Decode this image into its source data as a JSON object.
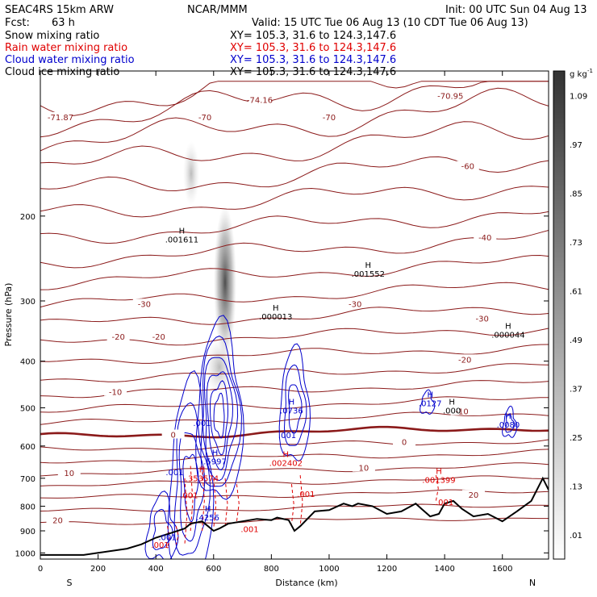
{
  "header": {
    "model": "SEAC4RS 15km ARW",
    "org": "NCAR/MMM",
    "init": "Init: 00 UTC Sun 04 Aug 13",
    "fcst_label": "Fcst:",
    "fcst_value": "63 h",
    "valid": "Valid: 15 UTC Tue 06 Aug 13 (10 CDT Tue 06 Aug 13)"
  },
  "legend": [
    {
      "label": "Snow mixing ratio",
      "xy": "XY= 105.3, 31.6 to 124.3,147.6",
      "color": "#000000"
    },
    {
      "label": "Rain water mixing ratio",
      "xy": "XY= 105.3, 31.6 to 124.3,147.6",
      "color": "#e00000"
    },
    {
      "label": "Cloud water mixing ratio",
      "xy": "XY= 105.3, 31.6 to 124.3,147.6",
      "color": "#0000cc"
    },
    {
      "label": "Cloud ice mixing ratio",
      "xy": "XY= 105.3, 31.6 to 124.3,147.6",
      "color": "#000000"
    }
  ],
  "chart_data": {
    "type": "contour-cross-section",
    "xlabel": "Distance (km)",
    "ylabel": "Pressure (hPa)",
    "xlim": [
      0,
      1760
    ],
    "ylim": [
      1030,
      100
    ],
    "y_log": true,
    "x_ticks": [
      0,
      200,
      400,
      600,
      800,
      1000,
      1200,
      1400,
      1600
    ],
    "y_ticks": [
      200,
      300,
      400,
      500,
      600,
      700,
      800,
      900,
      1000
    ],
    "x_end_labels": {
      "left": "S",
      "right": "N"
    },
    "colorbar": {
      "unit": "g kg",
      "unit_exp": "-1",
      "levels": [
        ".01",
        ".13",
        ".25",
        ".37",
        ".49",
        ".61",
        ".73",
        ".85",
        ".97",
        "1.09"
      ]
    },
    "terrain": [
      [
        0,
        1010
      ],
      [
        150,
        1010
      ],
      [
        200,
        1000
      ],
      [
        300,
        980
      ],
      [
        350,
        960
      ],
      [
        400,
        930
      ],
      [
        450,
        910
      ],
      [
        500,
        890
      ],
      [
        520,
        870
      ],
      [
        560,
        860
      ],
      [
        600,
        900
      ],
      [
        620,
        890
      ],
      [
        650,
        870
      ],
      [
        700,
        860
      ],
      [
        750,
        850
      ],
      [
        800,
        855
      ],
      [
        820,
        845
      ],
      [
        860,
        855
      ],
      [
        880,
        900
      ],
      [
        900,
        880
      ],
      [
        950,
        820
      ],
      [
        1000,
        815
      ],
      [
        1050,
        790
      ],
      [
        1080,
        800
      ],
      [
        1100,
        790
      ],
      [
        1150,
        800
      ],
      [
        1200,
        830
      ],
      [
        1250,
        820
      ],
      [
        1300,
        790
      ],
      [
        1320,
        810
      ],
      [
        1350,
        840
      ],
      [
        1380,
        830
      ],
      [
        1400,
        790
      ],
      [
        1430,
        780
      ],
      [
        1460,
        810
      ],
      [
        1500,
        840
      ],
      [
        1550,
        830
      ],
      [
        1600,
        860
      ],
      [
        1650,
        820
      ],
      [
        1700,
        780
      ],
      [
        1740,
        700
      ],
      [
        1760,
        740
      ]
    ],
    "temperature_labels": [
      {
        "text": "-71.87",
        "x": 70,
        "p": 125
      },
      {
        "text": "-74.16",
        "x": 760,
        "p": 115
      },
      {
        "text": "-70.95",
        "x": 1420,
        "p": 113
      },
      {
        "text": "-70",
        "x": 570,
        "p": 125
      },
      {
        "text": "-70",
        "x": 1000,
        "p": 125
      },
      {
        "text": "-60",
        "x": 1480,
        "p": 158
      },
      {
        "text": "-40",
        "x": 1540,
        "p": 222
      },
      {
        "text": "-30",
        "x": 360,
        "p": 305
      },
      {
        "text": "-30",
        "x": 1090,
        "p": 305
      },
      {
        "text": "-30",
        "x": 1530,
        "p": 327
      },
      {
        "text": "-20",
        "x": 270,
        "p": 357
      },
      {
        "text": "-20",
        "x": 410,
        "p": 357
      },
      {
        "text": "-20",
        "x": 1470,
        "p": 398
      },
      {
        "text": "-10",
        "x": 260,
        "p": 465
      },
      {
        "text": "-10",
        "x": 1460,
        "p": 510
      },
      {
        "text": "0",
        "x": 460,
        "p": 570
      },
      {
        "text": "0",
        "x": 1260,
        "p": 590
      },
      {
        "text": "10",
        "x": 100,
        "p": 685
      },
      {
        "text": "10",
        "x": 1120,
        "p": 668
      },
      {
        "text": "20",
        "x": 60,
        "p": 858
      },
      {
        "text": "20",
        "x": 1500,
        "p": 760
      }
    ],
    "maxima": [
      {
        "text": ".001611",
        "x": 490,
        "p": 225,
        "color": "#000000"
      },
      {
        "text": ".001552",
        "x": 1135,
        "p": 265,
        "color": "#000000"
      },
      {
        "text": ".000013",
        "x": 815,
        "p": 325,
        "color": "#000000"
      },
      {
        "text": ".000044",
        "x": 1620,
        "p": 355,
        "color": "#000000"
      },
      {
        "text": ".0127",
        "x": 1350,
        "p": 492,
        "color": "#0000cc"
      },
      {
        "text": ".000",
        "x": 1425,
        "p": 510,
        "color": "#000000"
      },
      {
        "text": ".0736",
        "x": 870,
        "p": 510,
        "color": "#0000cc"
      },
      {
        "text": ".0080",
        "x": 1620,
        "p": 545,
        "color": "#0000cc"
      },
      {
        "text": ".5997",
        "x": 605,
        "p": 650,
        "color": "#0000cc"
      },
      {
        "text": ".002402",
        "x": 850,
        "p": 655,
        "color": "#e00000"
      },
      {
        "text": ".353574",
        "x": 560,
        "p": 705,
        "color": "#e00000"
      },
      {
        "text": ".001399",
        "x": 1380,
        "p": 710,
        "color": "#e00000"
      },
      {
        "text": ".4256",
        "x": 580,
        "p": 850,
        "color": "#0000cc"
      }
    ],
    "minor_labels": [
      {
        "text": ".001",
        "x": 560,
        "p": 545,
        "color": "#0000cc"
      },
      {
        "text": ".001",
        "x": 855,
        "p": 578,
        "color": "#0000cc"
      },
      {
        "text": ".001",
        "x": 465,
        "p": 690,
        "color": "#0000cc"
      },
      {
        "text": ".001",
        "x": 515,
        "p": 770,
        "color": "#e00000"
      },
      {
        "text": ".001",
        "x": 920,
        "p": 765,
        "color": "#e00000"
      },
      {
        "text": ".001",
        "x": 1400,
        "p": 795,
        "color": "#e00000"
      },
      {
        "text": ".001",
        "x": 725,
        "p": 905,
        "color": "#e00000"
      },
      {
        "text": ".001",
        "x": 440,
        "p": 940,
        "color": "#0000cc"
      },
      {
        "text": ".001",
        "x": 415,
        "p": 975,
        "color": "#e00000"
      }
    ]
  }
}
